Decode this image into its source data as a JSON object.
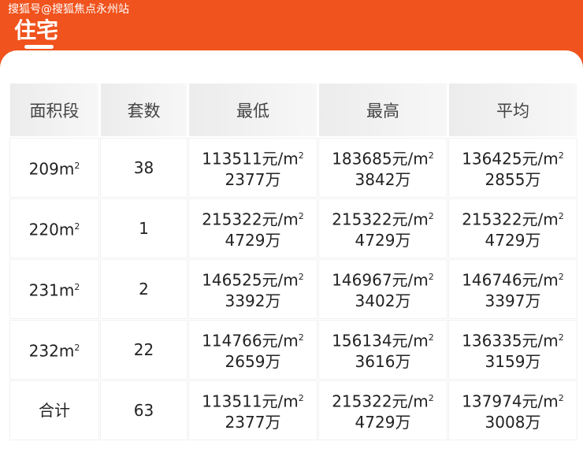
{
  "watermark": "搜狐号@搜狐焦点永州站",
  "title": "住宅",
  "colors": {
    "accent": "#f0531d"
  },
  "table": {
    "headers": [
      "面积段",
      "套数",
      "最低",
      "最高",
      "平均"
    ],
    "rows": [
      {
        "area": "209m",
        "count": "38",
        "min_price": "113511元/m",
        "min_total": "2377万",
        "max_price": "183685元/m",
        "max_total": "3842万",
        "avg_price": "136425元/m",
        "avg_total": "2855万"
      },
      {
        "area": "220m",
        "count": "1",
        "min_price": "215322元/m",
        "min_total": "4729万",
        "max_price": "215322元/m",
        "max_total": "4729万",
        "avg_price": "215322元/m",
        "avg_total": "4729万"
      },
      {
        "area": "231m",
        "count": "2",
        "min_price": "146525元/m",
        "min_total": "3392万",
        "max_price": "146967元/m",
        "max_total": "3402万",
        "avg_price": "146746元/m",
        "avg_total": "3397万"
      },
      {
        "area": "232m",
        "count": "22",
        "min_price": "114766元/m",
        "min_total": "2659万",
        "max_price": "156134元/m",
        "max_total": "3616万",
        "avg_price": "136335元/m",
        "avg_total": "3159万"
      },
      {
        "area": "合计",
        "count": "63",
        "min_price": "113511元/m",
        "min_total": "2377万",
        "max_price": "215322元/m",
        "max_total": "4729万",
        "avg_price": "137974元/m",
        "avg_total": "3008万"
      }
    ],
    "sup": "2"
  }
}
